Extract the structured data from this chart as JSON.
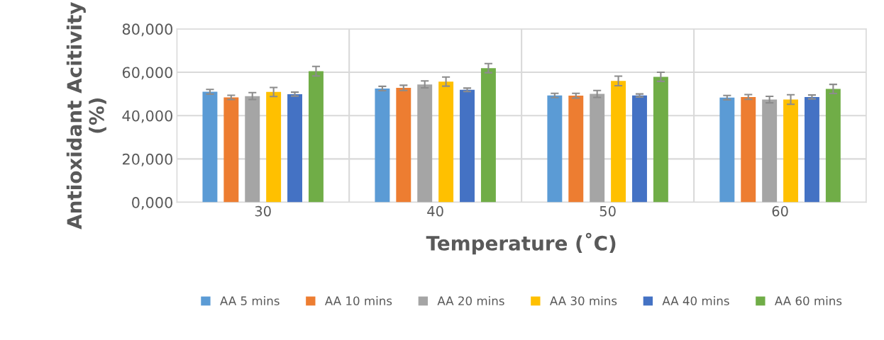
{
  "chart_data": {
    "type": "bar",
    "xlabel": "Temperature (˚C)",
    "ylabel": "Antioxidant Acitivity\n(%)",
    "categories": [
      "30",
      "40",
      "50",
      "60"
    ],
    "series": [
      {
        "name": "AA 5 mins",
        "color": "#5b9bd5",
        "values": [
          51000,
          52500,
          49300,
          48300
        ],
        "errors": [
          1100,
          1000,
          1000,
          1000
        ]
      },
      {
        "name": "AA 10 mins",
        "color": "#ed7d31",
        "values": [
          48400,
          52800,
          49200,
          48600
        ],
        "errors": [
          1000,
          1200,
          1100,
          1100
        ]
      },
      {
        "name": "AA 20 mins",
        "color": "#a5a5a5",
        "values": [
          49000,
          54400,
          50000,
          47400
        ],
        "errors": [
          1600,
          1600,
          1600,
          1500
        ]
      },
      {
        "name": "AA 30 mins",
        "color": "#ffc000",
        "values": [
          50900,
          55700,
          56000,
          47400
        ],
        "errors": [
          2100,
          2100,
          2200,
          2200
        ]
      },
      {
        "name": "AA 40 mins",
        "color": "#4472c4",
        "values": [
          49900,
          51900,
          49300,
          48600
        ],
        "errors": [
          900,
          800,
          700,
          900
        ]
      },
      {
        "name": "AA 60 mins",
        "color": "#70ad47",
        "values": [
          60500,
          61900,
          57900,
          52300
        ],
        "errors": [
          2200,
          2100,
          2100,
          2100
        ]
      }
    ],
    "ylim": [
      0,
      80000
    ],
    "yticks": [
      {
        "value": 0,
        "label": "0,000"
      },
      {
        "value": 20000,
        "label": "20,000"
      },
      {
        "value": 40000,
        "label": "40,000"
      },
      {
        "value": 60000,
        "label": "60,000"
      },
      {
        "value": 80000,
        "label": "80,000"
      }
    ],
    "grid": true,
    "legend": "bottom"
  }
}
